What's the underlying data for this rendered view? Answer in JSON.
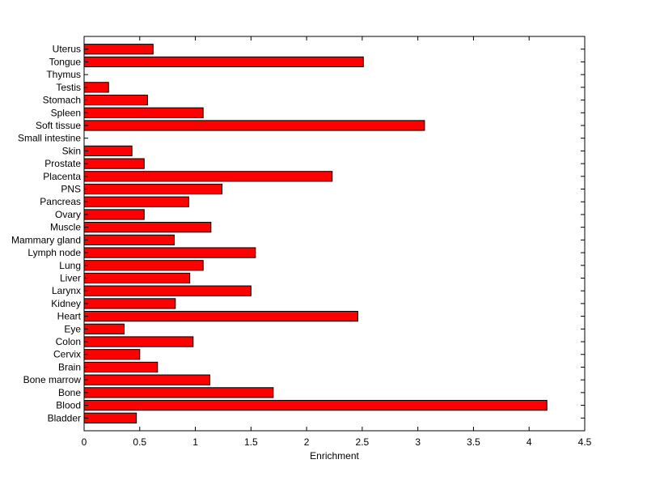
{
  "chart_data": {
    "type": "bar",
    "orientation": "horizontal",
    "title": "",
    "xlabel": "Enrichment",
    "ylabel": "",
    "xlim": [
      0,
      4.5
    ],
    "xticks": [
      0,
      0.5,
      1,
      1.5,
      2,
      2.5,
      3,
      3.5,
      4,
      4.5
    ],
    "xtick_labels": [
      "0",
      "0.5",
      "1",
      "1.5",
      "2",
      "2.5",
      "3",
      "3.5",
      "4",
      "4.5"
    ],
    "grid": false,
    "bar_color": "#ff0000",
    "bar_edge_color": "#000000",
    "categories": [
      "Bladder",
      "Blood",
      "Bone",
      "Bone marrow",
      "Brain",
      "Cervix",
      "Colon",
      "Eye",
      "Heart",
      "Kidney",
      "Larynx",
      "Liver",
      "Lung",
      "Lymph node",
      "Mammary gland",
      "Muscle",
      "Ovary",
      "Pancreas",
      "PNS",
      "Placenta",
      "Prostate",
      "Skin",
      "Small intestine",
      "Soft tissue",
      "Spleen",
      "Stomach",
      "Testis",
      "Thymus",
      "Tongue",
      "Uterus"
    ],
    "values": [
      0.47,
      4.16,
      1.7,
      1.13,
      0.66,
      0.5,
      0.98,
      0.36,
      2.46,
      0.82,
      1.5,
      0.95,
      1.07,
      1.54,
      0.81,
      1.14,
      0.54,
      0.94,
      1.24,
      2.23,
      0.54,
      0.43,
      0,
      3.06,
      1.07,
      0.57,
      0.22,
      0,
      2.51,
      0.62
    ]
  }
}
